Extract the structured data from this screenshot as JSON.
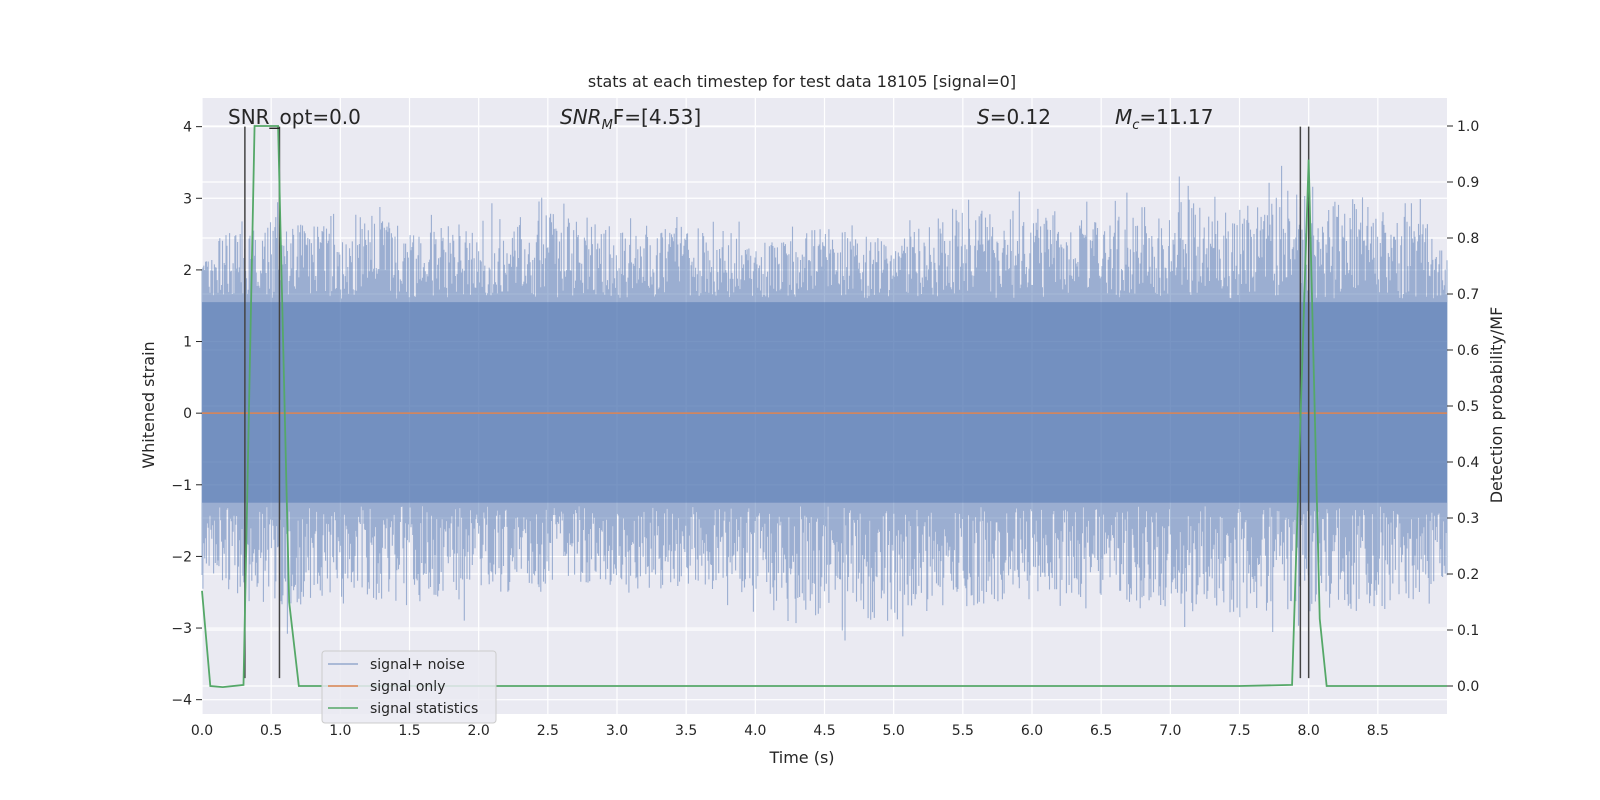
{
  "chart_data": {
    "type": "line",
    "title": "stats at each timestep for test data 18105 [signal=0]",
    "xlabel": "Time (s)",
    "ylabel": "Whitened strain",
    "y2label": "Detection probability/MF",
    "xlim": [
      0.0,
      9.0
    ],
    "ylim": [
      -4.2,
      4.4
    ],
    "y2lim": [
      -0.05,
      1.05
    ],
    "xticks": [
      "0.0",
      "0.5",
      "1.0",
      "1.5",
      "2.0",
      "2.5",
      "3.0",
      "3.5",
      "4.0",
      "4.5",
      "5.0",
      "5.5",
      "6.0",
      "6.5",
      "7.0",
      "7.5",
      "8.0",
      "8.5"
    ],
    "yticks": [
      "4",
      "3",
      "2",
      "1",
      "0",
      "−1",
      "−2",
      "−3",
      "−4"
    ],
    "y2ticks": [
      "1.0",
      "0.9",
      "0.8",
      "0.7",
      "0.6",
      "0.5",
      "0.4",
      "0.3",
      "0.2",
      "0.1",
      "0.0"
    ],
    "grid": true,
    "legend_position": "lower-left",
    "annotations": {
      "snr_opt": "SNR_opt=0.0",
      "snr_mf_prefix": "SNR",
      "snr_mf_sub": "M",
      "snr_mf_suffix": "F=[4.53]",
      "s_prefix": "S",
      "s_suffix": "=0.12",
      "mc_prefix": "M",
      "mc_sub": "c",
      "mc_suffix": "=11.17"
    },
    "series": [
      {
        "name": "signal+ noise",
        "color": "#4c72b0",
        "style": "dense noise envelope",
        "envelope_upper": [
          [
            0.0,
            2.4
          ],
          [
            0.5,
            2.8
          ],
          [
            1.0,
            2.9
          ],
          [
            1.5,
            2.6
          ],
          [
            2.0,
            2.7
          ],
          [
            2.5,
            2.8
          ],
          [
            3.0,
            2.7
          ],
          [
            3.5,
            2.6
          ],
          [
            4.0,
            2.5
          ],
          [
            4.5,
            2.6
          ],
          [
            5.0,
            2.4
          ],
          [
            5.5,
            2.9
          ],
          [
            6.0,
            2.8
          ],
          [
            6.5,
            2.7
          ],
          [
            7.0,
            3.0
          ],
          [
            7.5,
            2.9
          ],
          [
            8.0,
            3.2
          ],
          [
            8.5,
            2.9
          ],
          [
            9.0,
            2.6
          ]
        ],
        "envelope_lower": [
          [
            0.0,
            -2.3
          ],
          [
            0.5,
            -2.8
          ],
          [
            1.0,
            -2.5
          ],
          [
            1.5,
            -2.7
          ],
          [
            2.0,
            -2.6
          ],
          [
            2.5,
            -2.4
          ],
          [
            3.0,
            -2.4
          ],
          [
            3.5,
            -2.5
          ],
          [
            4.0,
            -2.5
          ],
          [
            4.5,
            -2.9
          ],
          [
            5.0,
            -2.9
          ],
          [
            5.5,
            -2.7
          ],
          [
            6.0,
            -2.6
          ],
          [
            6.5,
            -2.6
          ],
          [
            7.0,
            -2.7
          ],
          [
            7.5,
            -2.8
          ],
          [
            8.0,
            -2.8
          ],
          [
            8.5,
            -2.8
          ],
          [
            9.0,
            -2.3
          ]
        ]
      },
      {
        "name": "signal only",
        "color": "#dd8452",
        "points": [
          [
            0.0,
            0.0
          ],
          [
            9.0,
            0.0
          ]
        ]
      },
      {
        "name": "signal statistics",
        "color": "#55a868",
        "axis": "right",
        "points": [
          [
            0.0,
            0.17
          ],
          [
            0.06,
            0.0
          ],
          [
            0.15,
            -0.002
          ],
          [
            0.3,
            0.002
          ],
          [
            0.38,
            1.0
          ],
          [
            0.55,
            1.0
          ],
          [
            0.63,
            0.15
          ],
          [
            0.7,
            0.0
          ],
          [
            7.5,
            0.0
          ],
          [
            7.88,
            0.002
          ],
          [
            8.0,
            0.94
          ],
          [
            8.08,
            0.12
          ],
          [
            8.13,
            0.0
          ],
          [
            9.0,
            0.0
          ]
        ]
      }
    ],
    "vlines": [
      {
        "x": 0.31,
        "ymin": -3.7,
        "ymax": 4.0
      },
      {
        "x": 0.56,
        "ymin": -3.7,
        "ymax": 4.0
      },
      {
        "x": 7.94,
        "ymin": -3.7,
        "ymax": 4.0
      },
      {
        "x": 8.0,
        "ymin": -3.7,
        "ymax": 4.0
      }
    ]
  }
}
